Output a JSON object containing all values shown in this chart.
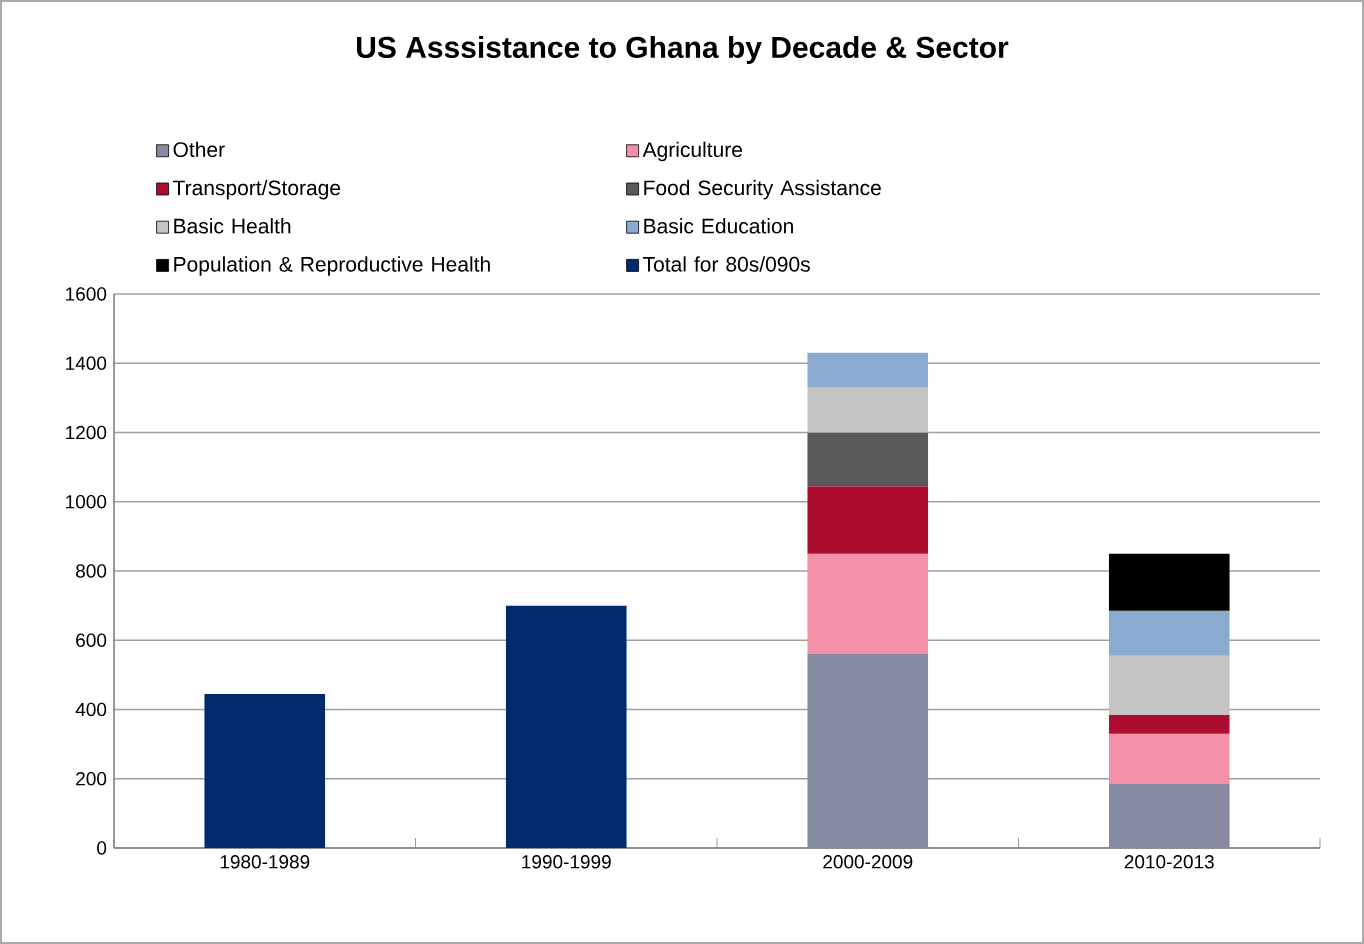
{
  "chart_data": {
    "type": "bar",
    "stacked": true,
    "title": "US Asssistance to Ghana by Decade & Sector",
    "categories": [
      "1980-1989",
      "1990-1999",
      "2000-2009",
      "2010-2013"
    ],
    "series": [
      {
        "name": "Other",
        "color": "#868aa0",
        "values": [
          null,
          null,
          560,
          185
        ]
      },
      {
        "name": "Agriculture",
        "color": "#f490a8",
        "values": [
          null,
          null,
          290,
          145
        ]
      },
      {
        "name": "Transport/Storage",
        "color": "#ad0e30",
        "values": [
          null,
          null,
          195,
          55
        ]
      },
      {
        "name": "Food Security Assistance",
        "color": "#595959",
        "values": [
          null,
          null,
          155,
          null
        ]
      },
      {
        "name": "Basic Health",
        "color": "#c4c4c4",
        "values": [
          null,
          null,
          130,
          170
        ]
      },
      {
        "name": "Basic Education",
        "color": "#8aabcf",
        "values": [
          null,
          null,
          100,
          130
        ]
      },
      {
        "name": "Population & Reproductive Health",
        "color": "#000000",
        "values": [
          null,
          null,
          null,
          165
        ]
      },
      {
        "name": "Total for 80s/090s",
        "color": "#002a6c",
        "values": [
          445,
          700,
          null,
          null
        ]
      }
    ],
    "ylim": [
      0,
      1600
    ],
    "yticks": [
      0,
      200,
      400,
      600,
      800,
      1000,
      1200,
      1400,
      1600
    ],
    "grid": "y",
    "legend": "top"
  }
}
